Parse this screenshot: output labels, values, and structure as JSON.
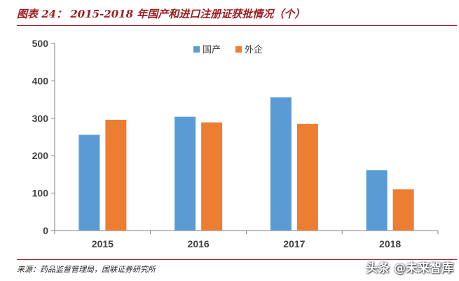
{
  "header": {
    "title": "图表 24： 2015-2018 年国产和进口注册证获批情况（个）"
  },
  "footer": {
    "source": "来源：药品监督管理局，国联证券研究所",
    "watermark": "头条 @未来智库"
  },
  "chart_data": {
    "type": "bar",
    "categories": [
      "2015",
      "2016",
      "2017",
      "2018"
    ],
    "series": [
      {
        "name": "国产",
        "color": "#5b9bd5",
        "values": [
          256,
          304,
          356,
          161
        ]
      },
      {
        "name": "外企",
        "color": "#ed7d31",
        "values": [
          296,
          289,
          285,
          110
        ]
      }
    ],
    "ylim": [
      0,
      500
    ],
    "yticks": [
      0,
      100,
      200,
      300,
      400,
      500
    ],
    "legend_position": "top-center",
    "grid": false
  }
}
